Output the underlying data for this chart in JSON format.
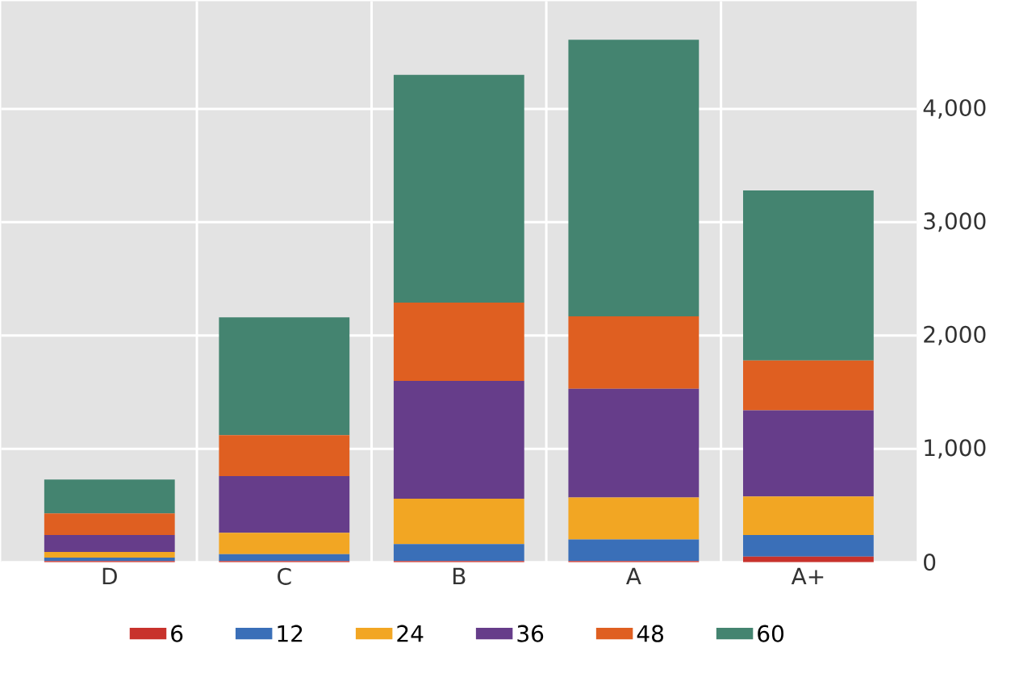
{
  "chart_data": {
    "type": "bar",
    "stacked": true,
    "categories": [
      "D",
      "C",
      "B",
      "A",
      "A+"
    ],
    "series": [
      {
        "name": "6",
        "color": "#c8322c",
        "values": [
          10,
          10,
          10,
          10,
          50
        ]
      },
      {
        "name": "12",
        "color": "#3a6fb8",
        "values": [
          30,
          60,
          150,
          190,
          190
        ]
      },
      {
        "name": "24",
        "color": "#f2a623",
        "values": [
          50,
          190,
          400,
          370,
          340
        ]
      },
      {
        "name": "36",
        "color": "#663d8a",
        "values": [
          150,
          500,
          1040,
          960,
          760
        ]
      },
      {
        "name": "48",
        "color": "#df5f21",
        "values": [
          190,
          360,
          690,
          640,
          440
        ]
      },
      {
        "name": "60",
        "color": "#448470",
        "values": [
          300,
          1040,
          2010,
          2440,
          1500
        ]
      }
    ],
    "ylim": [
      0,
      4950
    ],
    "yticks": [
      {
        "value": 0,
        "label": "0"
      },
      {
        "value": 1000,
        "label": "1,000"
      },
      {
        "value": 2000,
        "label": "2,000"
      },
      {
        "value": 3000,
        "label": "3,000"
      },
      {
        "value": 4000,
        "label": "4,000"
      }
    ],
    "grid": true,
    "legend": "bottom"
  }
}
